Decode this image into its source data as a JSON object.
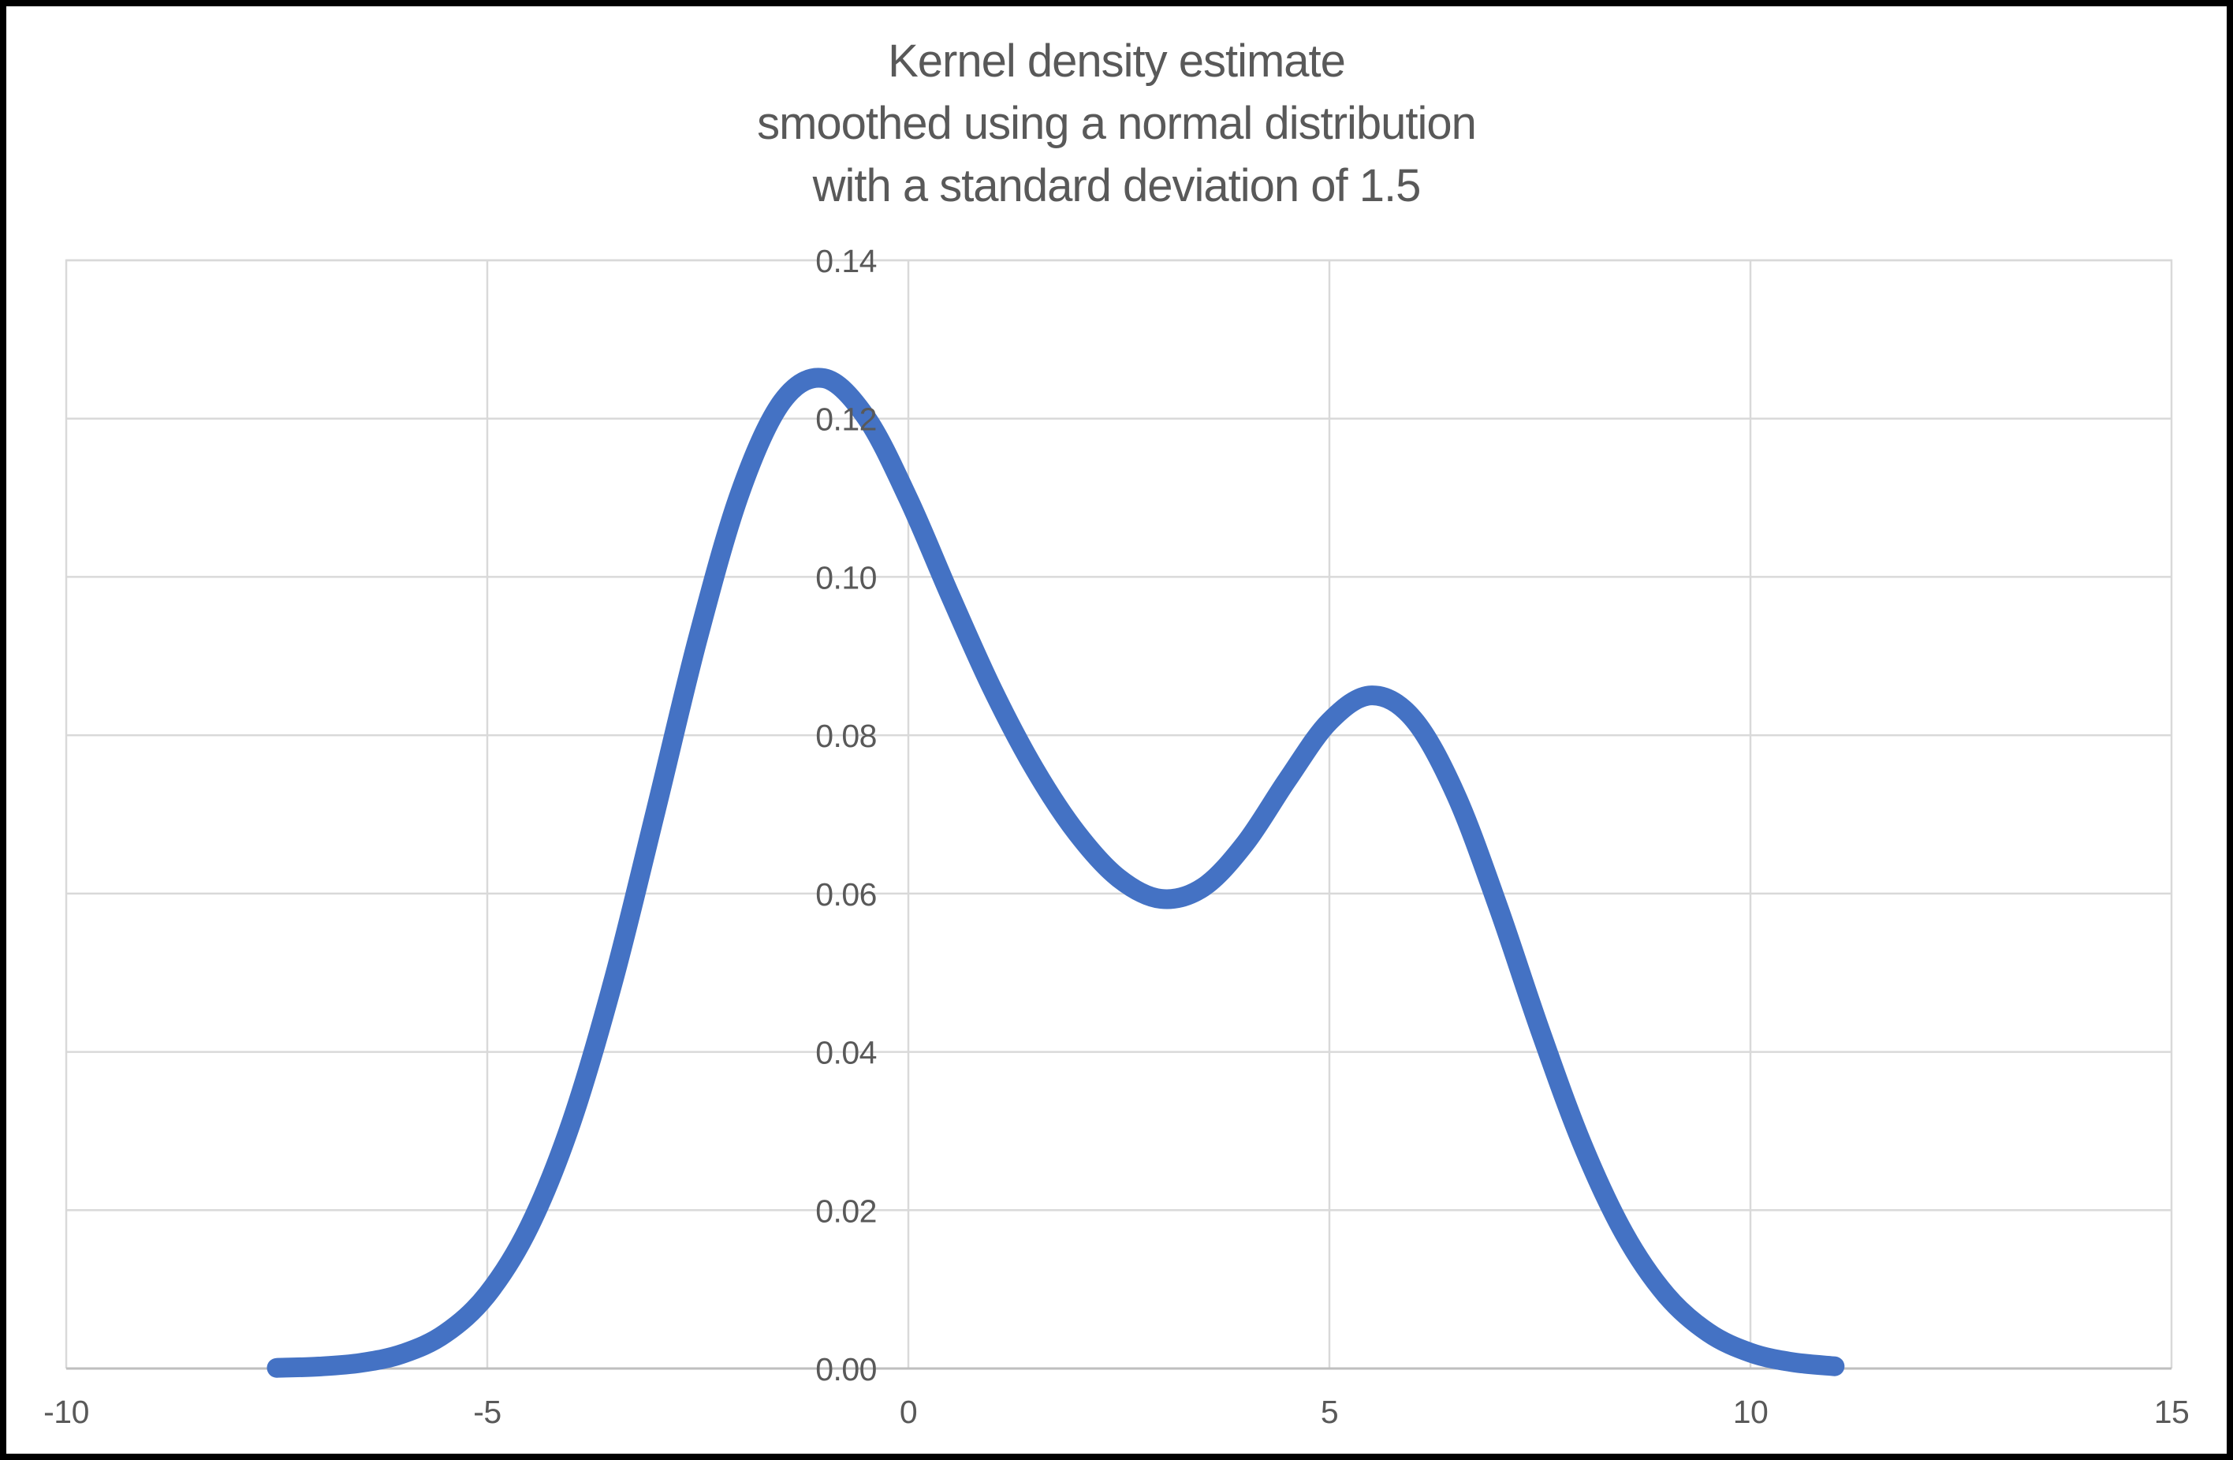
{
  "title": {
    "lines": [
      "Kernel density estimate",
      "smoothed using a normal distribution",
      "with a standard deviation of 1.5"
    ],
    "color": "#595959"
  },
  "colors": {
    "series_line": "#4472C4",
    "gridline": "#D9D9D9",
    "axis_line": "#BFBFBF",
    "tick_label": "#595959",
    "background": "#FFFFFF",
    "frame": "#000000"
  },
  "chart_data": {
    "type": "line",
    "title": "Kernel density estimate smoothed using a normal distribution with a standard deviation of 1.5",
    "xlabel": "",
    "ylabel": "",
    "xlim": [
      -10,
      15
    ],
    "ylim": [
      0,
      0.14
    ],
    "x_ticks": [
      -10,
      -5,
      0,
      5,
      10,
      15
    ],
    "x_tick_labels": [
      "-10",
      "-5",
      "0",
      "5",
      "10",
      "15"
    ],
    "y_ticks": [
      0,
      0.02,
      0.04,
      0.06,
      0.08,
      0.1,
      0.12,
      0.14
    ],
    "y_tick_labels": [
      "0.00",
      "0.02",
      "0.04",
      "0.06",
      "0.08",
      "0.10",
      "0.12",
      "0.14"
    ],
    "grid": true,
    "legend": false,
    "line_smoothing": true,
    "gridline_color": "#D9D9D9",
    "axis_line_color": "#BFBFBF",
    "tick_label_color": "#595959",
    "series": [
      {
        "name": "Kernel density estimate",
        "color": "#4472C4",
        "stroke_width": 25,
        "points": [
          [
            -7.5,
            8e-05
          ],
          [
            -7.0,
            0.00025
          ],
          [
            -6.5,
            0.00072
          ],
          [
            -6.0,
            0.00188
          ],
          [
            -5.5,
            0.00442
          ],
          [
            -5.0,
            0.00936
          ],
          [
            -4.5,
            0.01795
          ],
          [
            -4.0,
            0.03115
          ],
          [
            -3.5,
            0.0491
          ],
          [
            -3.0,
            0.07043
          ],
          [
            -2.5,
            0.0922
          ],
          [
            -2.0,
            0.11058
          ],
          [
            -1.5,
            0.12213
          ],
          [
            -1.0,
            0.12509
          ],
          [
            -0.5,
            0.12014
          ],
          [
            0.0,
            0.10988
          ],
          [
            0.5,
            0.09758
          ],
          [
            1.0,
            0.08579
          ],
          [
            1.5,
            0.07572
          ],
          [
            2.0,
            0.06767
          ],
          [
            2.5,
            0.06193
          ],
          [
            3.0,
            0.05933
          ],
          [
            3.5,
            0.06078
          ],
          [
            4.0,
            0.06633
          ],
          [
            4.5,
            0.07435
          ],
          [
            5.0,
            0.08173
          ],
          [
            5.5,
            0.08504
          ],
          [
            6.0,
            0.08202
          ],
          [
            6.5,
            0.07253
          ],
          [
            7.0,
            0.05846
          ],
          [
            7.5,
            0.04281
          ],
          [
            8.0,
            0.02842
          ],
          [
            8.5,
            0.01708
          ],
          [
            9.0,
            0.00927
          ],
          [
            9.5,
            0.00454
          ],
          [
            10.0,
            0.002
          ],
          [
            10.5,
            0.0008
          ],
          [
            11.0,
            0.00028
          ]
        ]
      }
    ]
  }
}
